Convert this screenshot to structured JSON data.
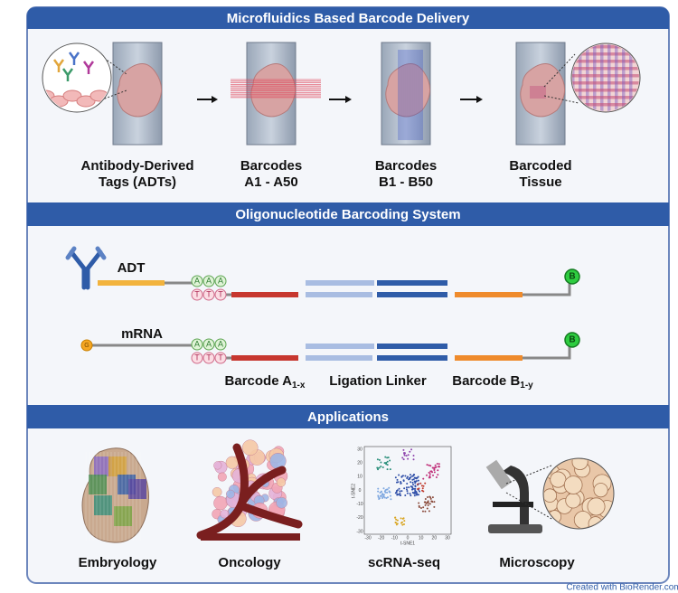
{
  "sections": [
    {
      "title": "Microfluidics Based Barcode Delivery"
    },
    {
      "title": "Oligonucleotide Barcoding System"
    },
    {
      "title": "Applications"
    }
  ],
  "delivery_steps": [
    {
      "lines": [
        "Antibody-Derived",
        "Tags (ADTs)"
      ]
    },
    {
      "lines": [
        "Barcodes",
        "A1 - A50"
      ]
    },
    {
      "lines": [
        "Barcodes",
        "B1 - B50"
      ]
    },
    {
      "lines": [
        "Barcoded",
        "Tissue"
      ]
    }
  ],
  "oligo": {
    "rows": [
      {
        "label": "ADT",
        "poly_a": [
          "A",
          "A",
          "A"
        ],
        "poly_t": [
          "T",
          "T",
          "T"
        ],
        "end_tag": "B"
      },
      {
        "label": "mRNA",
        "start_tag": "G",
        "poly_a": [
          "A",
          "A",
          "A"
        ],
        "poly_t": [
          "T",
          "T",
          "T"
        ],
        "end_tag": "B"
      }
    ],
    "labels": [
      {
        "text": "Barcode A",
        "subscript": "1-x"
      },
      {
        "text": "Ligation Linker"
      },
      {
        "text": "Barcode B",
        "subscript": "1-y"
      }
    ]
  },
  "applications": [
    {
      "label": "Embryology"
    },
    {
      "label": "Oncology"
    },
    {
      "label": "scRNA-seq"
    },
    {
      "label": "Microscopy"
    }
  ],
  "scrna_plot": {
    "x_label": "t-SNE1",
    "y_label": "t-SNE2",
    "xticks": [
      -30,
      -20,
      -10,
      0,
      10,
      20,
      30
    ],
    "yticks": [
      30,
      20,
      10,
      0,
      -10,
      -20,
      -30
    ]
  },
  "footer": "Created with BioRender.com"
}
